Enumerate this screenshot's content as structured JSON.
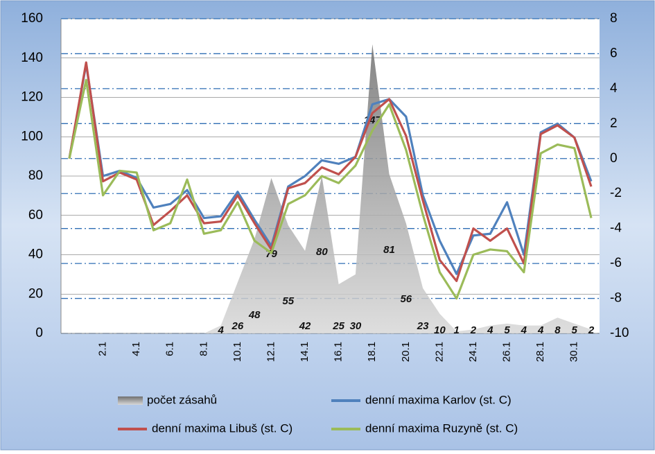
{
  "chart_data": {
    "type": "line",
    "categories": [
      null,
      null,
      "2.1",
      null,
      "4.1",
      null,
      "6.1",
      null,
      "8.1",
      null,
      "10.1",
      null,
      "12.1",
      null,
      "14.1",
      null,
      "16.1",
      null,
      "18.1",
      null,
      "20.1",
      null,
      "22.1",
      null,
      "24.1",
      null,
      "26.1",
      null,
      "28.1",
      null,
      "30.1",
      null
    ],
    "series": [
      {
        "name": "počet zásahů",
        "type": "area",
        "color": "#8c8c8c",
        "axis": "y",
        "values": [
          0,
          0,
          0,
          0,
          0,
          0,
          0,
          0,
          0,
          4,
          26,
          48,
          79,
          55,
          42,
          80,
          25,
          30,
          147,
          81,
          56,
          23,
          10,
          1,
          2,
          4,
          5,
          4,
          4,
          8,
          5,
          2
        ]
      },
      {
        "name": "denní maxima Karlov  (st. C)",
        "color": "#4f81bd",
        "axis": "y2",
        "values": [
          0,
          5.4,
          -1.0,
          -0.7,
          -1.1,
          -2.8,
          -2.6,
          -1.8,
          -3.4,
          -3.3,
          -1.9,
          -3.5,
          -5.0,
          -1.6,
          -1.0,
          -0.1,
          -0.3,
          0.1,
          3.1,
          3.4,
          2.4,
          -2.1,
          -4.7,
          -6.6,
          -4.4,
          -4.3,
          -2.5,
          -5.5,
          1.5,
          2.0,
          1.2,
          -1.3
        ]
      },
      {
        "name": "denní maxima Libuš (st. C)",
        "color": "#c0504d",
        "axis": "y2",
        "values": [
          0,
          5.5,
          -1.3,
          -0.8,
          -1.2,
          -3.8,
          -3.0,
          -2.1,
          -3.7,
          -3.6,
          -2.1,
          -3.7,
          -5.2,
          -1.7,
          -1.4,
          -0.5,
          -0.9,
          0.1,
          2.6,
          3.4,
          1.3,
          -2.4,
          -5.8,
          -7.0,
          -4.0,
          -4.7,
          -4.0,
          -6.0,
          1.4,
          1.9,
          1.2,
          -1.6
        ]
      },
      {
        "name": "denní maxima Ruzyně (st. C)",
        "color": "#9bbb59",
        "axis": "y2",
        "values": [
          0,
          4.5,
          -2.1,
          -0.7,
          -0.8,
          -4.1,
          -3.7,
          -1.2,
          -4.3,
          -4.1,
          -2.5,
          -4.7,
          -5.4,
          -2.6,
          -2.1,
          -1.0,
          -1.4,
          -0.4,
          1.6,
          3.1,
          0.5,
          -3.2,
          -6.5,
          -8.0,
          -5.5,
          -5.2,
          -5.3,
          -6.5,
          0.3,
          0.8,
          0.6,
          -3.4
        ]
      }
    ],
    "ylim": [
      0,
      160
    ],
    "yticks": [
      0,
      20,
      40,
      60,
      80,
      100,
      120,
      140,
      160
    ],
    "y2lim": [
      -10,
      8
    ],
    "y2ticks": [
      -10,
      -8,
      -6,
      -4,
      -2,
      0,
      2,
      4,
      6,
      8
    ],
    "grid": true,
    "legend": "bottom"
  }
}
